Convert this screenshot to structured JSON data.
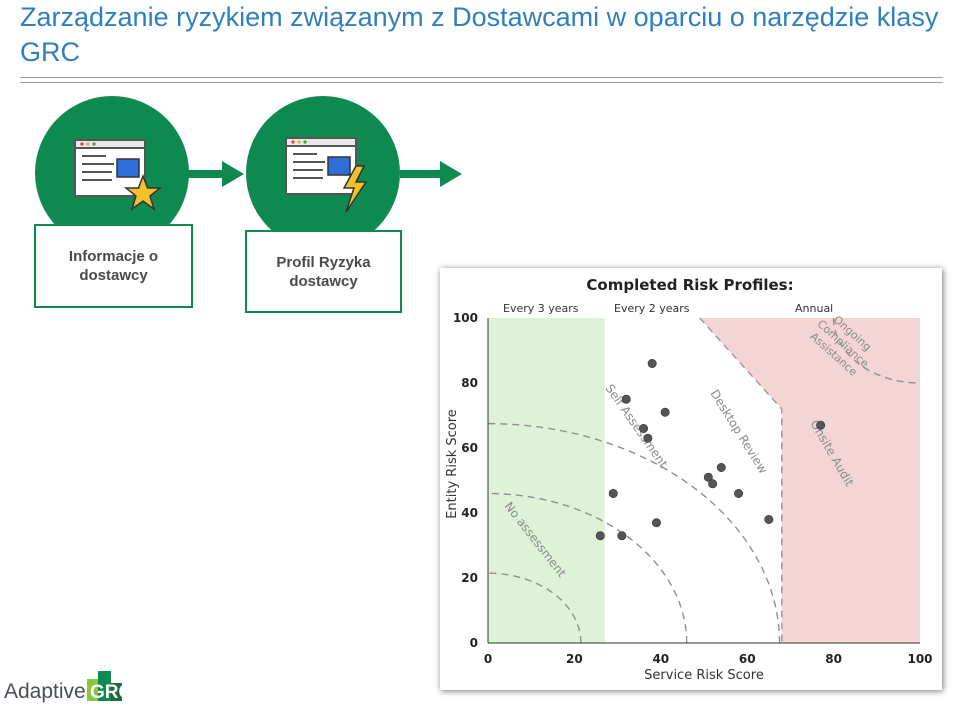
{
  "slide": {
    "title": "Zarządzanie ryzykiem związanym z Dostawcami w oparciu o narzędzie klasy GRC"
  },
  "process": {
    "steps": [
      {
        "label": "Informacje o dostawcy",
        "icon": "browser-star-icon"
      },
      {
        "label": "Profil Ryzyka dostawcy",
        "icon": "browser-lightning-icon"
      }
    ],
    "color": "#0e8a50"
  },
  "chart_data": {
    "type": "scatter",
    "title": "Completed Risk Profiles:",
    "xlabel": "Service Risk Score",
    "ylabel": "Entity Risk Score",
    "xlim": [
      0,
      100
    ],
    "ylim": [
      0,
      100
    ],
    "x_ticks": [
      "0",
      "20",
      "40",
      "60",
      "80",
      "100"
    ],
    "y_ticks": [
      "0",
      "20",
      "40",
      "60",
      "80",
      "100"
    ],
    "grid": false,
    "frequency_labels": [
      "Every 3 years",
      "Every 2 years",
      "Annual"
    ],
    "zone_labels": [
      "No assessment",
      "Self Assessment",
      "Desktop Review",
      "Onsite Audit",
      "Ongoing Compliance Assistance"
    ],
    "zone_colors": {
      "every_3_years": "#ddf2d6",
      "annual": "#f3d5d6"
    },
    "point_color": "#555555",
    "points": [
      {
        "x": 26,
        "y": 33
      },
      {
        "x": 29,
        "y": 46
      },
      {
        "x": 31,
        "y": 33
      },
      {
        "x": 32,
        "y": 75
      },
      {
        "x": 36,
        "y": 66
      },
      {
        "x": 37,
        "y": 63
      },
      {
        "x": 38,
        "y": 86
      },
      {
        "x": 39,
        "y": 37
      },
      {
        "x": 41,
        "y": 71
      },
      {
        "x": 51,
        "y": 51
      },
      {
        "x": 52,
        "y": 49
      },
      {
        "x": 54,
        "y": 54
      },
      {
        "x": 58,
        "y": 46
      },
      {
        "x": 65,
        "y": 38
      },
      {
        "x": 77,
        "y": 67
      }
    ]
  },
  "logo": {
    "text_left": "Adaptive",
    "text_right": "GRC",
    "colors": {
      "dark": "#4a4f55",
      "green": "#0e8a50",
      "light_green": "#8cc63f"
    }
  }
}
